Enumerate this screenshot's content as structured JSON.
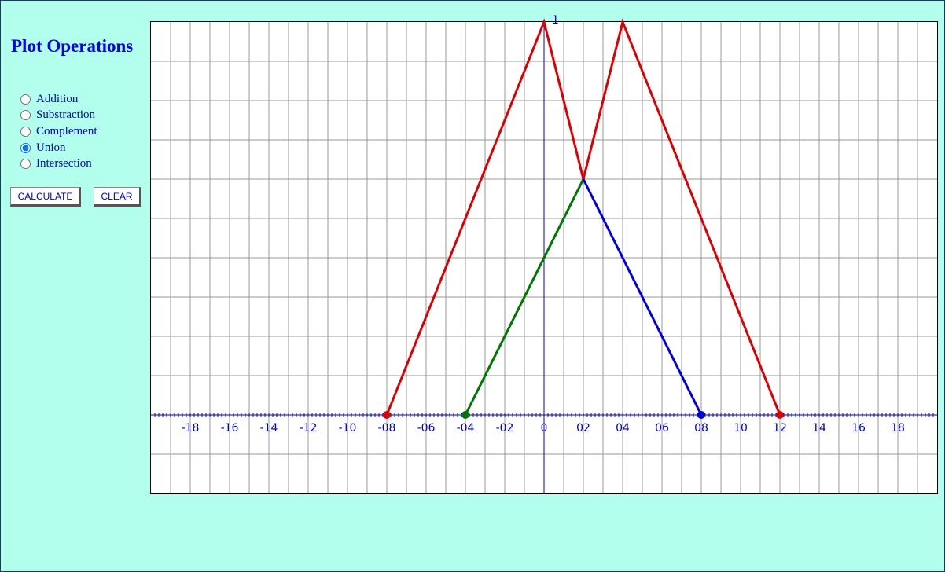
{
  "panel": {
    "title": "Plot Operations",
    "options": [
      {
        "label": "Addition",
        "checked": false
      },
      {
        "label": "Substraction",
        "checked": false
      },
      {
        "label": "Complement",
        "checked": false
      },
      {
        "label": "Union",
        "checked": true
      },
      {
        "label": "Intersection",
        "checked": false
      }
    ],
    "buttons": {
      "calculate": "CALCULATE",
      "clear": "CLEAR"
    }
  },
  "chart_data": {
    "type": "line",
    "xlim": [
      -20,
      20
    ],
    "ylim": [
      -0.2,
      1
    ],
    "grid": true,
    "x_tick_labels": [
      "-18",
      "-16",
      "-14",
      "-12",
      "-10",
      "-08",
      "-06",
      "-04",
      "-02",
      "0",
      "02",
      "04",
      "06",
      "08",
      "10",
      "12",
      "14",
      "16",
      "18"
    ],
    "x_tick_values": [
      -18,
      -16,
      -14,
      -12,
      -10,
      -8,
      -6,
      -4,
      -2,
      0,
      2,
      4,
      6,
      8,
      10,
      12,
      14,
      16,
      18
    ],
    "y_tick_label": "1",
    "y_tick_value": 1,
    "series": [
      {
        "color": "#dd0000",
        "points": [
          [
            -8,
            0
          ],
          [
            0,
            1
          ],
          [
            2,
            0.6
          ],
          [
            4,
            1
          ],
          [
            12,
            0
          ]
        ]
      },
      {
        "color": "#007700",
        "points": [
          [
            -4,
            0
          ],
          [
            2,
            0.6
          ]
        ]
      },
      {
        "color": "#0000dd",
        "points": [
          [
            2,
            0.6
          ],
          [
            8,
            0
          ]
        ]
      }
    ],
    "markers": [
      {
        "x": -8,
        "y": 0,
        "color": "#dd0000"
      },
      {
        "x": -4,
        "y": 0,
        "color": "#007700"
      },
      {
        "x": 8,
        "y": 0,
        "color": "#0000dd"
      },
      {
        "x": 12,
        "y": 0,
        "color": "#dd0000"
      }
    ]
  }
}
